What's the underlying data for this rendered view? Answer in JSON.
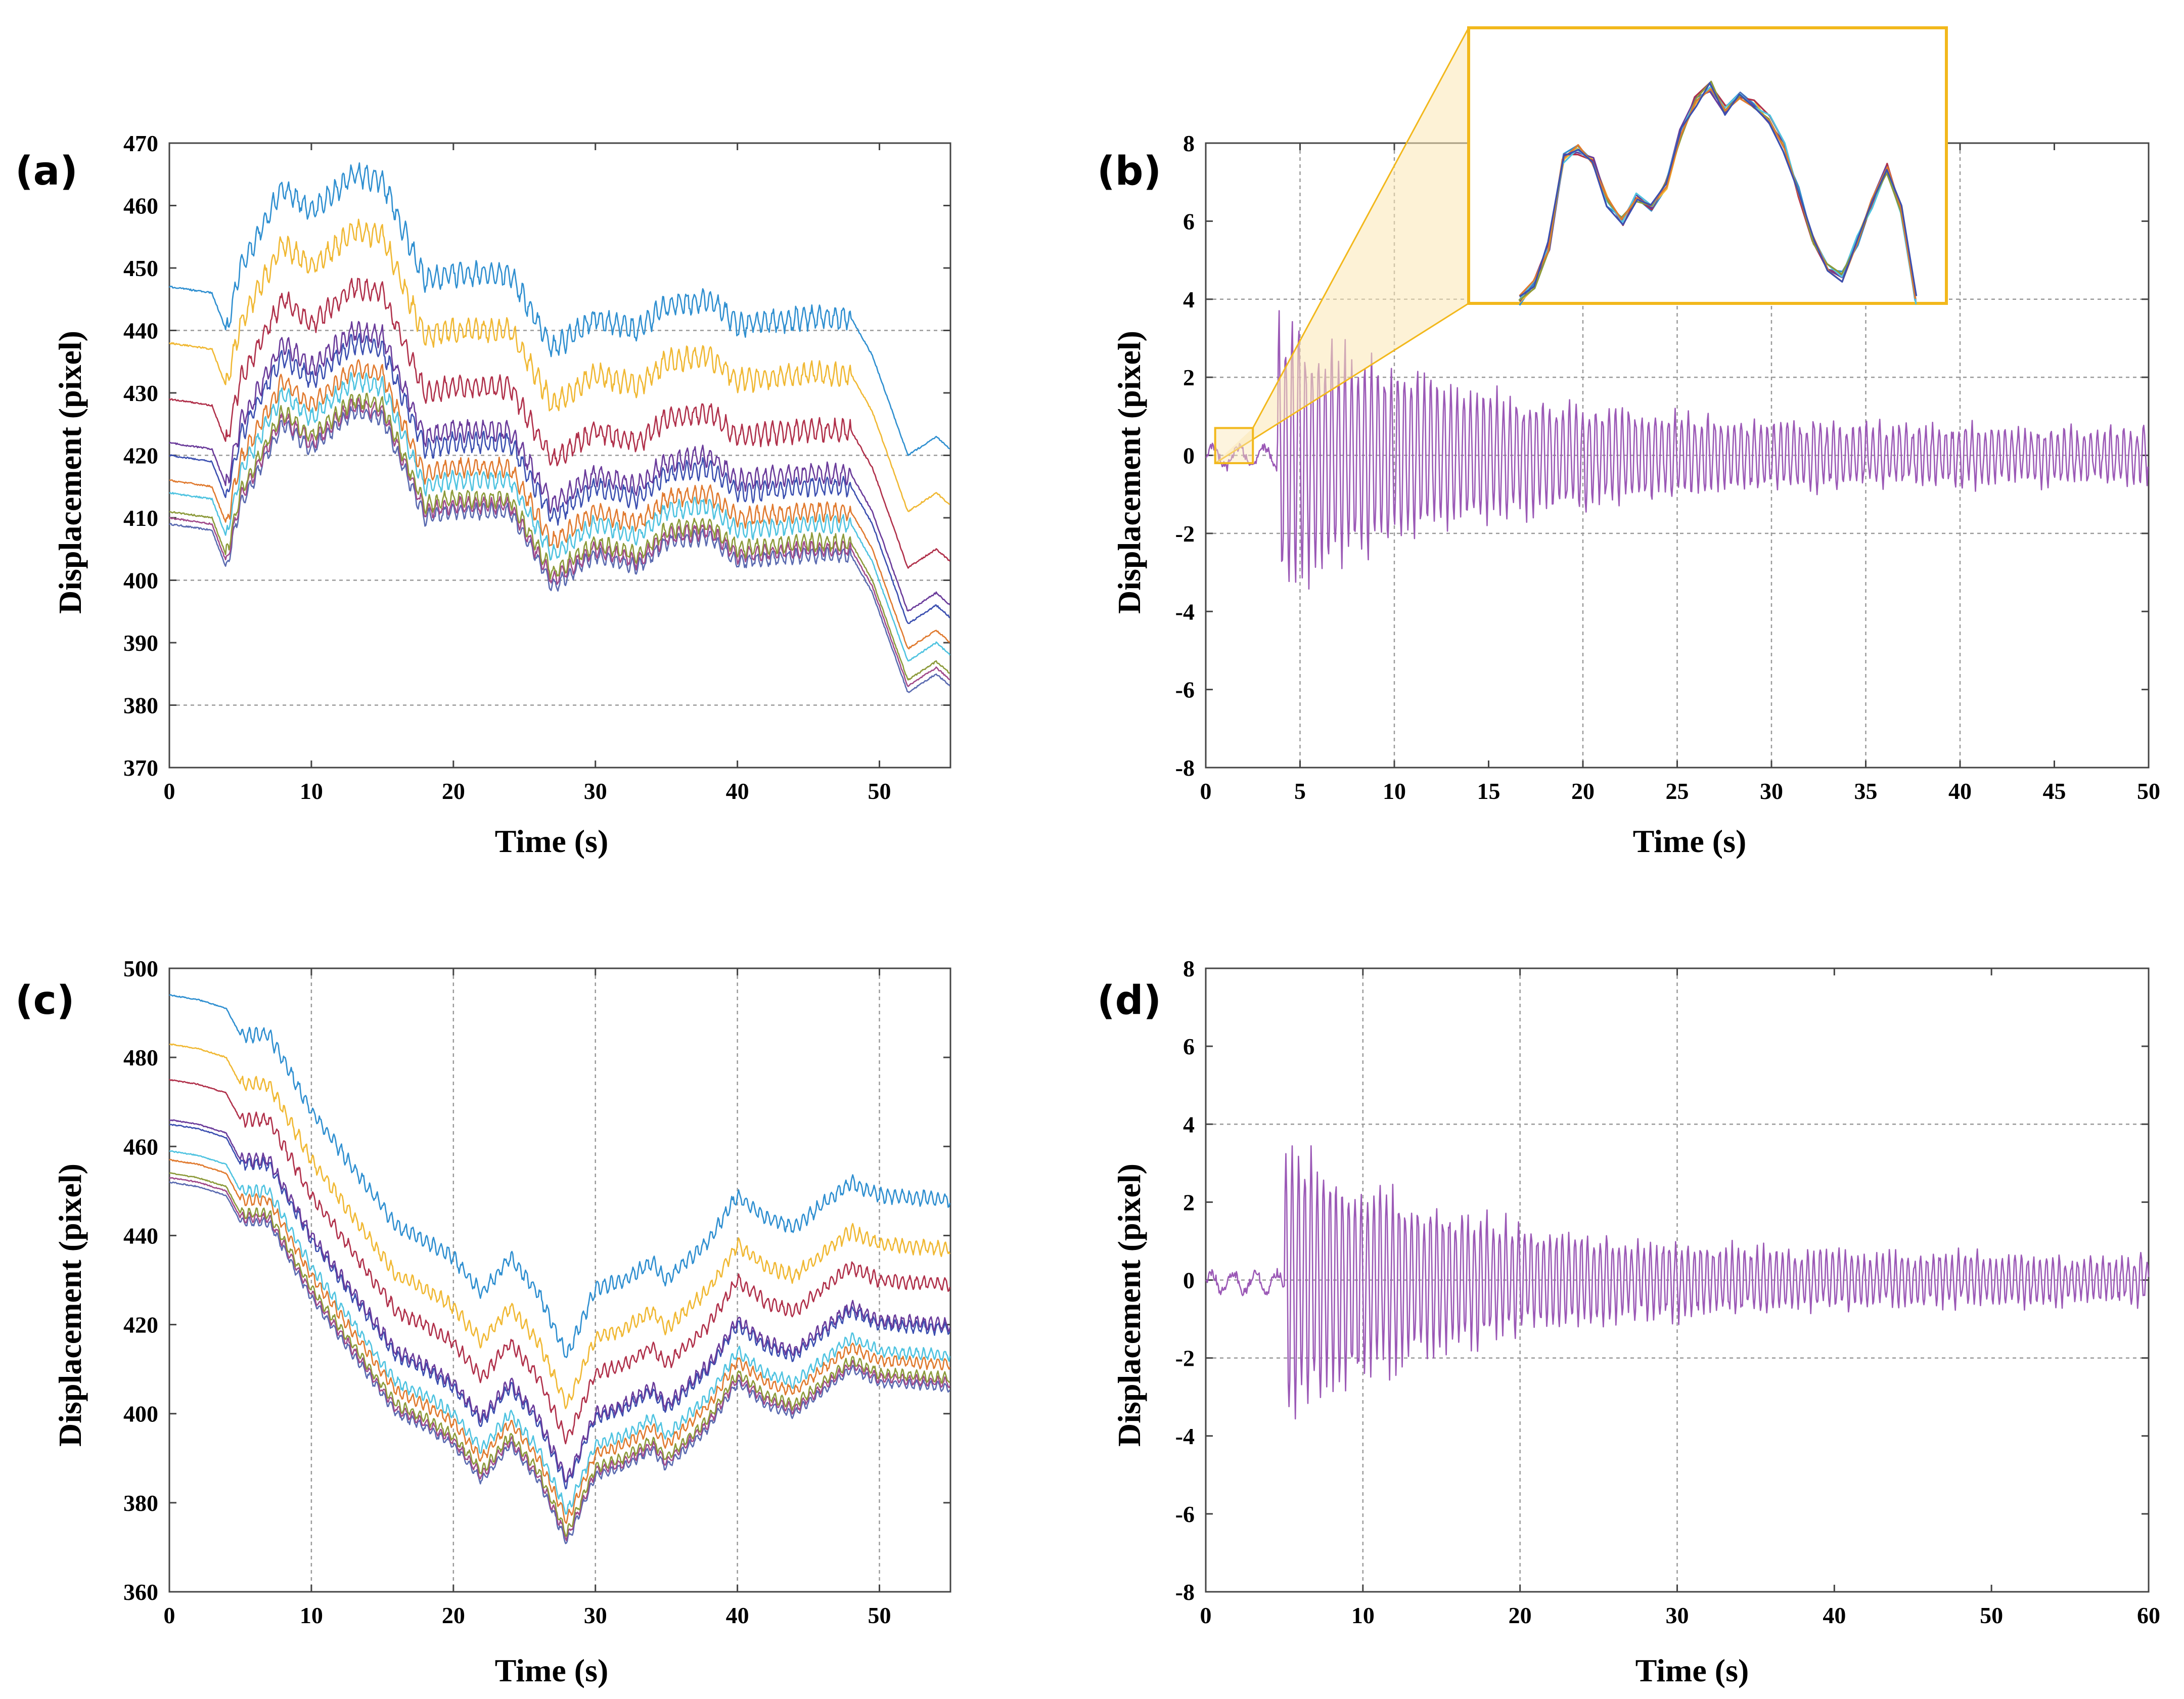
{
  "figure": {
    "panels": [
      {
        "label": "(a)"
      },
      {
        "label": "(b)"
      },
      {
        "label": "(c)"
      },
      {
        "label": "(d)"
      }
    ]
  },
  "chart_data": [
    {
      "panel": "(a)",
      "type": "line",
      "xlabel": "Time (s)",
      "ylabel": "Displacement (pixel)",
      "xlim": [
        0,
        55
      ],
      "ylim": [
        370,
        470
      ],
      "xticks": [
        0,
        10,
        20,
        30,
        40,
        50
      ],
      "yticks": [
        370,
        380,
        390,
        400,
        410,
        420,
        430,
        440,
        450,
        460,
        470
      ],
      "grid_y": [
        380,
        400,
        420,
        440
      ],
      "grid_x": [],
      "series_colors": [
        "#2f8fd0",
        "#f0b833",
        "#b0304a",
        "#6a3b9a",
        "#3b4fb0",
        "#e07a2f",
        "#4fc3e0",
        "#8c9a3a",
        "#a04a8a",
        "#5a6ab0"
      ],
      "trend": {
        "t": [
          0,
          3,
          4,
          5,
          8,
          10,
          13,
          15,
          18,
          20,
          24,
          27,
          30,
          33,
          35,
          38,
          40,
          45,
          48,
          49.5,
          52,
          54,
          55
        ],
        "base": [
          447,
          446,
          440,
          450,
          463,
          459,
          465,
          464,
          448,
          449,
          449,
          437,
          442,
          440,
          444,
          445,
          441,
          442,
          442,
          436,
          420,
          423,
          421
        ]
      },
      "offsets": [
        0,
        -9,
        -18,
        -25,
        -27,
        -31,
        -33,
        -36,
        -37,
        -38
      ],
      "oscillation": {
        "amplitude": 1.6,
        "period": 0.55,
        "t_start": 4,
        "t_end": 48
      }
    },
    {
      "panel": "(b)",
      "type": "line",
      "xlabel": "Time (s)",
      "ylabel": "Displacement (pixel)",
      "xlim": [
        0,
        50
      ],
      "ylim": [
        -8,
        8
      ],
      "xticks": [
        0,
        5,
        10,
        15,
        20,
        25,
        30,
        35,
        40,
        45,
        50
      ],
      "yticks": [
        -8,
        -6,
        -4,
        -2,
        0,
        2,
        4,
        6,
        8
      ],
      "grid_y": [
        -2,
        0,
        2,
        4
      ],
      "grid_x": [
        5,
        10,
        20,
        25,
        30,
        35,
        40
      ],
      "series_color": "#9b59b6",
      "impact_time": 3.8,
      "peak_amplitude": 3.8,
      "decay_time_constant": 11,
      "floor_amplitude": 0.7,
      "period": 0.35,
      "inset": {
        "zoom_x": [
          0.5,
          2.5
        ],
        "zoom_y": [
          -0.2,
          0.7
        ],
        "colors": [
          "#2f8fd0",
          "#f0b833",
          "#b0304a",
          "#6a3b9a",
          "#4fc3e0",
          "#8c9a3a",
          "#e07a2f",
          "#3b4fb0"
        ],
        "profile": [
          0.0,
          0.05,
          0.18,
          0.47,
          0.5,
          0.46,
          0.33,
          0.26,
          0.34,
          0.3,
          0.38,
          0.56,
          0.66,
          0.71,
          0.63,
          0.68,
          0.65,
          0.6,
          0.51,
          0.36,
          0.2,
          0.11,
          0.08,
          0.2,
          0.32,
          0.44,
          0.3,
          0.0
        ]
      }
    },
    {
      "panel": "(c)",
      "type": "line",
      "xlabel": "Time (s)",
      "ylabel": "Displacement (pixel)",
      "xlim": [
        0,
        55
      ],
      "ylim": [
        360,
        500
      ],
      "xticks": [
        0,
        10,
        20,
        30,
        40,
        50
      ],
      "yticks": [
        360,
        380,
        400,
        420,
        440,
        460,
        480,
        500
      ],
      "grid_y": [],
      "grid_x": [
        10,
        20,
        30,
        40,
        50
      ],
      "series_colors": [
        "#2f8fd0",
        "#f0b833",
        "#b0304a",
        "#6a3b9a",
        "#3b4fb0",
        "#4fc3e0",
        "#e07a2f",
        "#8c9a3a",
        "#a04a8a",
        "#5a6ab0"
      ],
      "trend": {
        "t": [
          0,
          2,
          4,
          5,
          7,
          10,
          13,
          16,
          18,
          20,
          22,
          24,
          26,
          28,
          30,
          32,
          34,
          35,
          38,
          40,
          42,
          44,
          48,
          50,
          55
        ],
        "base": [
          494,
          493,
          491,
          485,
          485,
          468,
          455,
          442,
          439,
          435,
          427,
          435,
          427,
          413,
          428,
          430,
          434,
          430,
          439,
          449,
          444,
          442,
          452,
          449,
          448
        ]
      },
      "offsets": [
        0,
        -11,
        -19,
        -28,
        -29,
        -35,
        -37,
        -40,
        -41,
        -42
      ],
      "oscillation": {
        "amplitude": 1.4,
        "period": 0.5,
        "t_start": 5,
        "t_end": 55
      }
    },
    {
      "panel": "(d)",
      "type": "line",
      "xlabel": "Time (s)",
      "ylabel": "Displacement (pixel)",
      "xlim": [
        0,
        60
      ],
      "ylim": [
        -8,
        8
      ],
      "xticks": [
        0,
        10,
        20,
        30,
        40,
        50,
        60
      ],
      "yticks": [
        -8,
        -6,
        -4,
        -2,
        0,
        2,
        4,
        6,
        8
      ],
      "grid_y": [
        -2,
        0,
        4
      ],
      "grid_x": [
        10,
        20,
        30
      ],
      "series_color": "#9b59b6",
      "impact_time": 5,
      "peak_amplitude": 4.0,
      "decay_time_constant": 12,
      "floor_amplitude": 0.6,
      "period": 0.4
    }
  ]
}
